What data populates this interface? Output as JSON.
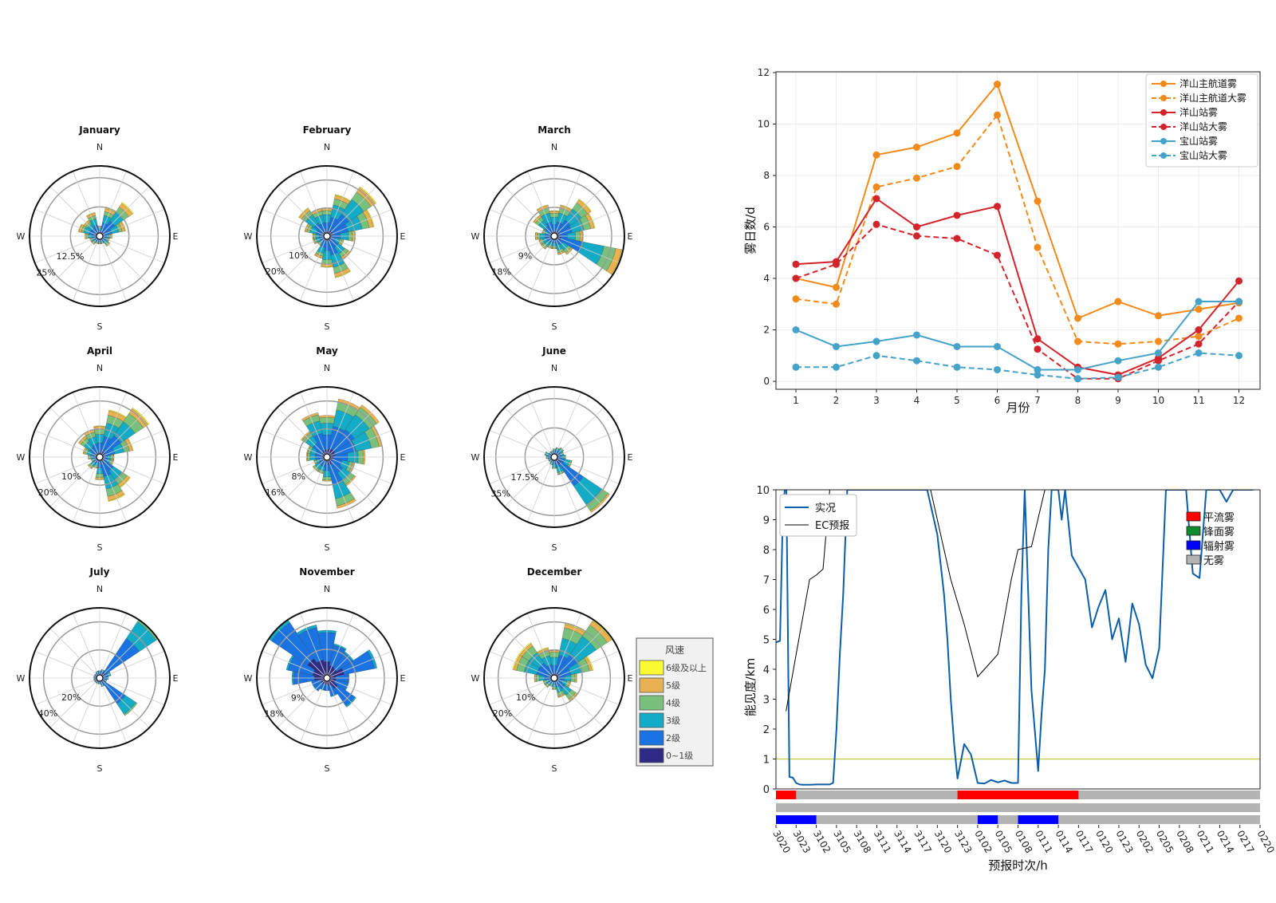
{
  "colors": {
    "speed_classes": [
      "#2e2a86",
      "#1a73e2",
      "#14abc7",
      "#78c07c",
      "#eab153",
      "#fafa30"
    ],
    "line_orange": "#f28b1c",
    "line_red": "#d3242b",
    "line_blue": "#45a2c9",
    "obs_line": "#0d5ea8",
    "threshold": "#c8c83a",
    "advection": "#ff0000",
    "frontal": "#108a2f",
    "radiation": "#0000ff",
    "nofog": "#b3b3b3"
  },
  "compass": {
    "n": "N",
    "e": "E",
    "s": "S",
    "w": "W"
  },
  "speed_legend": {
    "title": "风速",
    "entries": [
      "6级及以上",
      "5级",
      "4级",
      "3级",
      "2级",
      "0~1级"
    ]
  },
  "chart_data": [
    {
      "type": "windrose",
      "title": "January",
      "ring_labels": [
        "12.5%",
        "25%"
      ],
      "ring_values": [
        12.5,
        25
      ],
      "rmax": 30,
      "note": "sector lengths in percent frequency, 16 directions from N clockwise; class shares from calm to strongest",
      "sectors": [
        3,
        11,
        16,
        10,
        4,
        3,
        4,
        2,
        2,
        2,
        3,
        3,
        5,
        8,
        7,
        9
      ],
      "classes": [
        0.05,
        0.35,
        0.3,
        0.15,
        0.12,
        0.03
      ]
    },
    {
      "type": "windrose",
      "title": "February",
      "ring_labels": [
        "10%",
        "20%"
      ],
      "ring_values": [
        10,
        20
      ],
      "rmax": 25,
      "sectors": [
        9,
        14,
        20,
        16,
        9,
        5,
        9,
        14,
        10,
        7,
        3,
        4,
        4,
        7,
        11,
        9
      ],
      "classes": [
        0.06,
        0.35,
        0.32,
        0.16,
        0.09,
        0.02
      ]
    },
    {
      "type": "windrose",
      "title": "March",
      "ring_labels": [
        "9%",
        "18%"
      ],
      "ring_values": [
        9,
        18
      ],
      "rmax": 22,
      "sectors": [
        7,
        9,
        13,
        12,
        8,
        21,
        6,
        5,
        3,
        3,
        4,
        4,
        5,
        3,
        7,
        9
      ],
      "classes": [
        0.06,
        0.33,
        0.32,
        0.18,
        0.09,
        0.02
      ]
    },
    {
      "type": "windrose",
      "title": "April",
      "ring_labels": [
        "10%",
        "20%"
      ],
      "ring_values": [
        10,
        20
      ],
      "rmax": 25,
      "sectors": [
        10,
        16,
        20,
        11,
        4,
        4,
        12,
        15,
        7,
        3,
        4,
        2,
        3,
        5,
        8,
        9
      ],
      "classes": [
        0.06,
        0.34,
        0.3,
        0.18,
        0.1,
        0.02
      ]
    },
    {
      "type": "windrose",
      "title": "May",
      "ring_labels": [
        "8%",
        "16%"
      ],
      "ring_values": [
        8,
        16
      ],
      "rmax": 20,
      "sectors": [
        11,
        16,
        17,
        15,
        10,
        7,
        9,
        14,
        6,
        4,
        4,
        3,
        5,
        5,
        8,
        12
      ],
      "classes": [
        0.1,
        0.4,
        0.3,
        0.15,
        0.05,
        0
      ]
    },
    {
      "type": "windrose",
      "title": "June",
      "ring_labels": [
        "17.5%",
        "35%"
      ],
      "ring_values": [
        17.5,
        35
      ],
      "rmax": 42,
      "sectors": [
        3,
        4,
        5,
        4,
        5,
        9,
        38,
        9,
        5,
        3,
        2,
        2,
        3,
        4,
        2,
        2
      ],
      "classes": [
        0.08,
        0.42,
        0.35,
        0.12,
        0.03,
        0
      ]
    },
    {
      "type": "windrose",
      "title": "July",
      "ring_labels": [
        "20%",
        "40%"
      ],
      "ring_values": [
        20,
        40
      ],
      "rmax": 50,
      "sectors": [
        3,
        4,
        48,
        6,
        4,
        3,
        30,
        4,
        2,
        2,
        2,
        2,
        2,
        2,
        2,
        3
      ],
      "classes": [
        0.06,
        0.6,
        0.3,
        0.04,
        0,
        0
      ]
    },
    {
      "type": "windrose",
      "title": "November",
      "ring_labels": [
        "9%",
        "18%"
      ],
      "ring_values": [
        9,
        18
      ],
      "rmax": 22,
      "sectors": [
        14,
        10,
        9,
        15,
        6,
        6,
        10,
        5,
        3,
        3,
        4,
        4,
        10,
        12,
        21,
        16
      ],
      "classes": [
        0.3,
        0.65,
        0.05,
        0,
        0,
        0
      ]
    },
    {
      "type": "windrose",
      "title": "December",
      "ring_labels": [
        "10%",
        "20%"
      ],
      "ring_values": [
        10,
        20
      ],
      "rmax": 25,
      "sectors": [
        9,
        19,
        24,
        13,
        7,
        5,
        9,
        6,
        3,
        2,
        3,
        3,
        6,
        14,
        14,
        10
      ],
      "classes": [
        0.04,
        0.34,
        0.32,
        0.2,
        0.07,
        0.03
      ]
    },
    {
      "type": "line",
      "xlabel": "月份",
      "ylabel": "雾日数/d",
      "categories": [
        1,
        2,
        3,
        4,
        5,
        6,
        7,
        8,
        9,
        10,
        11,
        12
      ],
      "ylim": [
        0,
        12
      ],
      "yticks": [
        0,
        2,
        4,
        6,
        8,
        10,
        12
      ],
      "grid": true,
      "legend": "top-right",
      "series": [
        {
          "name": "洋山主航道雾",
          "values": [
            4.0,
            3.65,
            8.8,
            9.1,
            9.65,
            11.55,
            7.0,
            2.45,
            3.1,
            2.55,
            2.8,
            3.05
          ],
          "color": "line_orange",
          "dashed": false
        },
        {
          "name": "洋山主航道大雾",
          "values": [
            3.2,
            3.0,
            7.55,
            7.9,
            8.35,
            10.35,
            5.2,
            1.55,
            1.45,
            1.55,
            1.75,
            2.45
          ],
          "color": "line_orange",
          "dashed": true
        },
        {
          "name": "洋山站雾",
          "values": [
            4.55,
            4.65,
            7.1,
            6.0,
            6.45,
            6.8,
            1.65,
            0.55,
            0.25,
            0.9,
            2.0,
            3.9
          ],
          "color": "line_red",
          "dashed": false
        },
        {
          "name": "洋山站大雾",
          "values": [
            4.0,
            4.55,
            6.1,
            5.65,
            5.55,
            4.9,
            1.25,
            0.1,
            0.1,
            0.8,
            1.45,
            3.1
          ],
          "color": "line_red",
          "dashed": true
        },
        {
          "name": "宝山站雾",
          "values": [
            2.0,
            1.35,
            1.55,
            1.8,
            1.35,
            1.35,
            0.45,
            0.45,
            0.8,
            1.1,
            3.1,
            3.1
          ],
          "color": "line_blue",
          "dashed": false
        },
        {
          "name": "宝山站大雾",
          "values": [
            0.55,
            0.55,
            1.0,
            0.8,
            0.55,
            0.45,
            0.25,
            0.1,
            0.15,
            0.55,
            1.1,
            1.0
          ],
          "color": "line_blue",
          "dashed": true
        }
      ]
    },
    {
      "type": "line",
      "xlabel": "预报时次/h",
      "ylabel": "能见度/km",
      "ylim": [
        0,
        10
      ],
      "yticks": [
        0,
        1,
        2,
        3,
        4,
        5,
        6,
        7,
        8,
        9,
        10
      ],
      "xtick_labels": [
        "3020",
        "3023",
        "3102",
        "3105",
        "3108",
        "3111",
        "3114",
        "3117",
        "3120",
        "3123",
        "0102",
        "0105",
        "0108",
        "0111",
        "0114",
        "0117",
        "0120",
        "0123",
        "0202",
        "0205",
        "0208",
        "0211",
        "0214",
        "0217",
        "0220"
      ],
      "threshold": 1,
      "x_unit": "hours since first forecast time (3020)",
      "series": [
        {
          "name": "实况",
          "x": [
            0,
            0.6,
            1,
            1.3,
            1.55,
            2,
            2.5,
            3,
            3.5,
            4,
            5,
            6,
            7,
            8,
            8.5,
            9,
            9.5,
            10,
            10.6,
            11,
            12,
            13,
            14,
            15,
            16,
            17,
            18,
            19,
            20,
            21,
            22,
            22.5,
            23,
            24,
            25,
            25.5,
            26,
            26.5,
            27,
            28,
            29,
            30,
            31,
            32,
            33,
            34,
            35,
            35.5,
            36,
            36.5,
            37,
            38,
            39,
            39.5,
            40,
            40.5,
            41,
            42,
            42.5,
            43,
            44,
            45,
            46,
            47,
            48,
            49,
            50,
            51,
            52,
            53,
            54,
            55,
            56,
            57,
            58,
            59,
            60,
            61,
            62,
            63,
            64,
            65,
            66,
            67,
            68,
            69,
            70,
            71
          ],
          "y": [
            4.9,
            4.95,
            9,
            10,
            10,
            0.4,
            0.38,
            0.2,
            0.15,
            0.14,
            0.14,
            0.15,
            0.15,
            0.15,
            0.2,
            2,
            4.5,
            6.5,
            10,
            10,
            10,
            10,
            10,
            10,
            10,
            10,
            10,
            10,
            10,
            10,
            10,
            10,
            9.5,
            8.5,
            6.5,
            5,
            3,
            1.5,
            0.35,
            1.5,
            1.15,
            0.2,
            0.18,
            0.3,
            0.22,
            0.28,
            0.2,
            0.2,
            0.2,
            6.5,
            10,
            3.3,
            0.6,
            2.5,
            4,
            8,
            10,
            10,
            9,
            10,
            7.8,
            7.4,
            7.0,
            5.4,
            6.1,
            6.65,
            5.0,
            5.7,
            4.25,
            6.2,
            5.5,
            4.15,
            3.7,
            4.7,
            10,
            10,
            10,
            10,
            7.2,
            7.05,
            10,
            10,
            10,
            9.6,
            10,
            10,
            10,
            10
          ],
          "color": "obs_line",
          "width": 2
        },
        {
          "name": "EC预报",
          "x": [
            1.5,
            3,
            5,
            6,
            7,
            8,
            23,
            24,
            26,
            28,
            30,
            33,
            35,
            36,
            38,
            40,
            41,
            43,
            44
          ],
          "y": [
            2.6,
            4.5,
            7.0,
            7.15,
            7.35,
            10,
            10,
            9.0,
            7.0,
            5.5,
            3.75,
            4.5,
            7.0,
            8.0,
            8.1,
            10,
            10,
            10,
            10
          ],
          "color": "#000000",
          "width": 1
        }
      ],
      "type_legend": [
        "平流雾",
        "锋面雾",
        "辐射雾",
        "无雾"
      ],
      "type_bars": [
        {
          "color": "advection",
          "segments": [
            [
              0,
              3
            ],
            [
              27,
              45
            ]
          ]
        },
        {
          "color": "frontal",
          "segments": []
        },
        {
          "color": "radiation",
          "segments": [
            [
              0,
              6
            ],
            [
              30,
              33
            ],
            [
              36,
              42
            ]
          ]
        }
      ]
    }
  ]
}
